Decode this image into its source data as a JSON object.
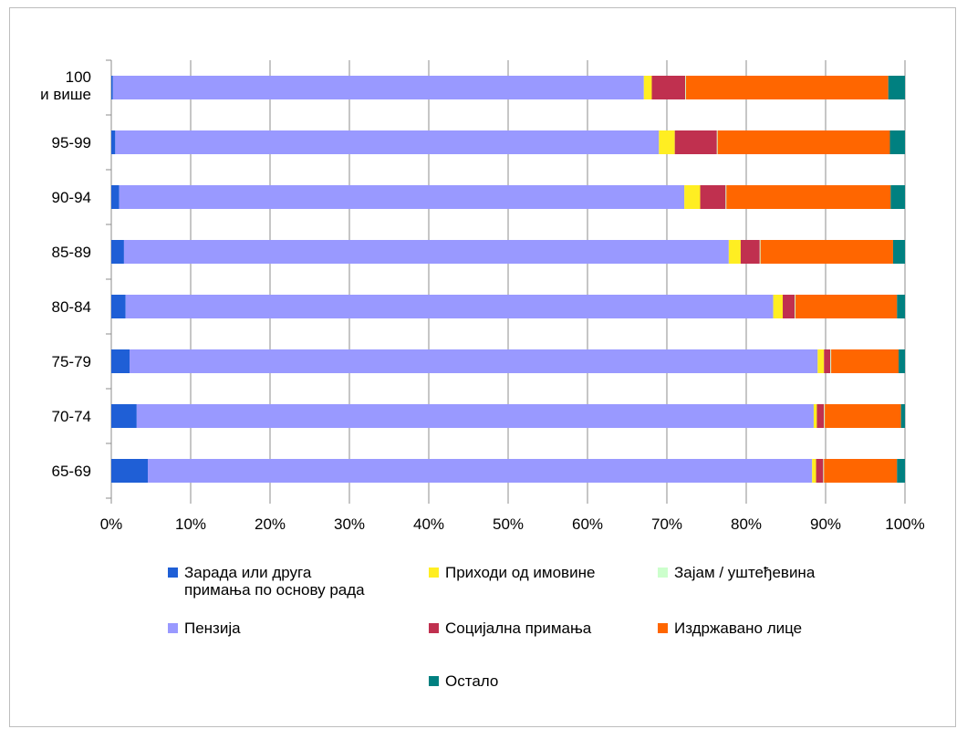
{
  "chart_data": {
    "type": "bar",
    "orientation": "horizontal",
    "stacked": "percent",
    "title": "",
    "xlabel": "",
    "ylabel": "",
    "xlim": [
      0,
      100
    ],
    "x_ticks": [
      "0%",
      "10%",
      "20%",
      "30%",
      "40%",
      "50%",
      "60%",
      "70%",
      "80%",
      "90%",
      "100%"
    ],
    "grid": "vertical",
    "legend_position": "bottom",
    "categories": [
      {
        "lines": [
          "100",
          "и више"
        ]
      },
      {
        "lines": [
          "95-99"
        ]
      },
      {
        "lines": [
          "90-94"
        ]
      },
      {
        "lines": [
          "85-89"
        ]
      },
      {
        "lines": [
          "80-84"
        ]
      },
      {
        "lines": [
          "75-79"
        ]
      },
      {
        "lines": [
          "70-74"
        ]
      },
      {
        "lines": [
          "65-69"
        ]
      }
    ],
    "series": [
      {
        "name_lines": [
          "Зарада или друга",
          "примања по основу рада"
        ],
        "color": "#1f5fd6",
        "values": [
          0.2,
          0.5,
          1.0,
          1.6,
          1.8,
          2.3,
          3.2,
          4.6
        ]
      },
      {
        "name_lines": [
          "Пензија"
        ],
        "color": "#9999ff",
        "values": [
          66.9,
          68.5,
          71.2,
          76.2,
          81.6,
          86.7,
          85.3,
          83.7
        ]
      },
      {
        "name_lines": [
          "Приходи од имовине"
        ],
        "color": "#ffee22",
        "values": [
          1.0,
          2.0,
          2.0,
          1.5,
          1.2,
          0.8,
          0.4,
          0.5
        ]
      },
      {
        "name_lines": [
          "Социјална примања"
        ],
        "color": "#c0304f",
        "values": [
          4.2,
          5.3,
          3.2,
          2.4,
          1.5,
          0.8,
          0.9,
          0.9
        ]
      },
      {
        "name_lines": [
          "Зајам / уштеђевина"
        ],
        "color": "#ccffcc",
        "values": [
          0.1,
          0.1,
          0.1,
          0.1,
          0.1,
          0.1,
          0.1,
          0.1
        ]
      },
      {
        "name_lines": [
          "Издржавано лице"
        ],
        "color": "#ff6600",
        "values": [
          25.5,
          21.7,
          20.7,
          16.7,
          12.8,
          8.5,
          9.6,
          9.2
        ]
      },
      {
        "name_lines": [
          "Остало"
        ],
        "color": "#008080",
        "values": [
          2.1,
          1.9,
          1.8,
          1.5,
          1.0,
          0.8,
          0.5,
          1.0
        ]
      }
    ],
    "legend_order": [
      0,
      2,
      4,
      1,
      3,
      5,
      6
    ]
  }
}
